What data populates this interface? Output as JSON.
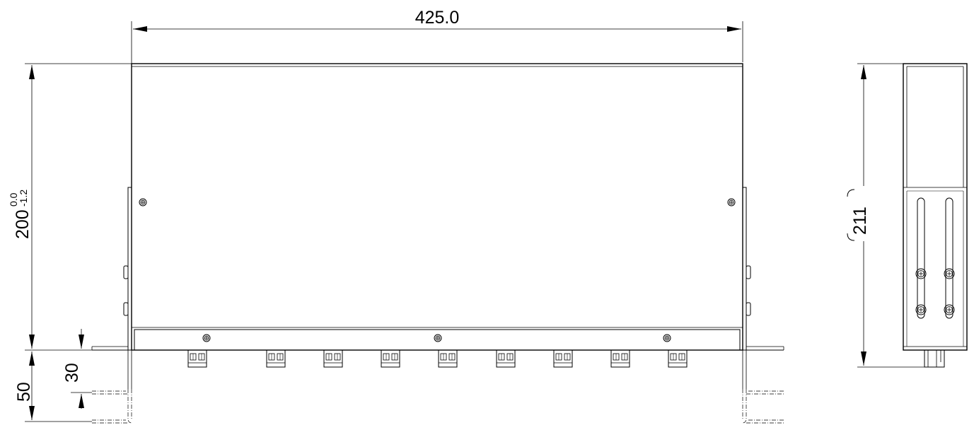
{
  "drawing": {
    "width_dim": "425.0",
    "height_dim": "200",
    "height_tol_upper": "0.0",
    "height_tol_lower": "-1.2",
    "side_height_dim": "211",
    "bracket_dim_large": "50",
    "bracket_dim_small": "30",
    "connector_count": 9,
    "line_color": "#000000",
    "background_color": "#ffffff"
  }
}
